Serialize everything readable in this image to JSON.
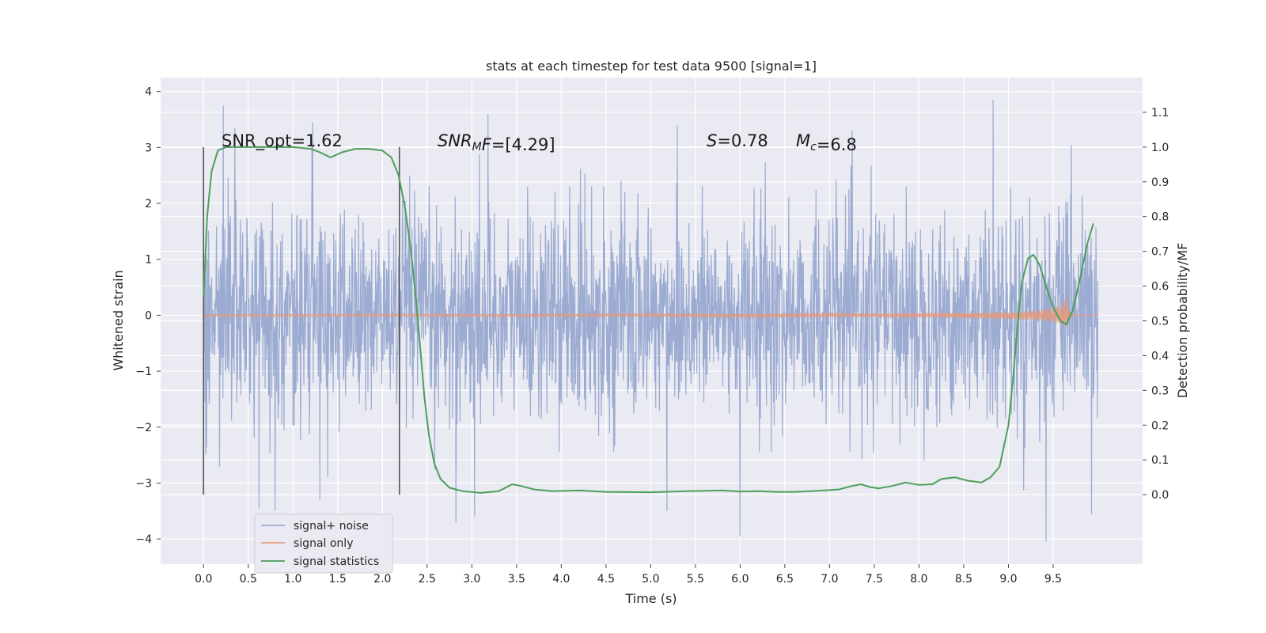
{
  "chart_data": {
    "type": "line",
    "title": "stats at each timestep for test data 9500 [signal=1]",
    "xlabel": "Time (s)",
    "ylabel": "Whitened strain",
    "y2label": "Detection probability/MF",
    "xlim": [
      -0.48,
      10.5
    ],
    "ylim": [
      -4.45,
      4.25
    ],
    "y2lim": [
      -0.2,
      1.2
    ],
    "x_ticks": [
      0.0,
      0.5,
      1.0,
      1.5,
      2.0,
      2.5,
      3.0,
      3.5,
      4.0,
      4.5,
      5.0,
      5.5,
      6.0,
      6.5,
      7.0,
      7.5,
      8.0,
      8.5,
      9.0,
      9.5
    ],
    "x_tick_labels": [
      "0.0",
      "0.5",
      "1.0",
      "1.5",
      "2.0",
      "2.5",
      "3.0",
      "3.5",
      "4.0",
      "4.5",
      "5.0",
      "5.5",
      "6.0",
      "6.5",
      "7.0",
      "7.5",
      "8.0",
      "8.5",
      "9.0",
      "9.5"
    ],
    "y_ticks": [
      4,
      3,
      2,
      1,
      0,
      -1,
      -2,
      -3,
      -4
    ],
    "y_tick_labels": [
      "4",
      "3",
      "2",
      "1",
      "0",
      "−1",
      "−2",
      "−3",
      "−4"
    ],
    "y2_ticks": [
      1.1,
      1.0,
      0.9,
      0.8,
      0.7,
      0.6,
      0.5,
      0.4,
      0.3,
      0.2,
      0.1,
      0.0
    ],
    "y2_tick_labels": [
      "1.1",
      "1.0",
      "0.9",
      "0.8",
      "0.7",
      "0.6",
      "0.5",
      "0.4",
      "0.3",
      "0.2",
      "0.1",
      "0.0"
    ],
    "grid": true,
    "legend_position": "lower-left",
    "series": [
      {
        "name": "signal+ noise",
        "color": "#8da0cb",
        "axis": "left",
        "noise_std": 1.0,
        "x_range": [
          0.0,
          10.0
        ],
        "spikes": [
          {
            "x": 0.22,
            "y": 3.75
          },
          {
            "x": 0.35,
            "y": 3.35
          },
          {
            "x": 1.22,
            "y": 3.45
          },
          {
            "x": 3.18,
            "y": 3.6
          },
          {
            "x": 5.3,
            "y": 3.4
          },
          {
            "x": 8.83,
            "y": 3.85
          },
          {
            "x": 0.62,
            "y": -3.45
          },
          {
            "x": 0.8,
            "y": -3.5
          },
          {
            "x": 1.3,
            "y": -3.3
          },
          {
            "x": 2.82,
            "y": -3.7
          },
          {
            "x": 3.03,
            "y": -3.6
          },
          {
            "x": 5.18,
            "y": -3.5
          },
          {
            "x": 6.0,
            "y": -3.95
          },
          {
            "x": 9.42,
            "y": -4.05
          },
          {
            "x": 9.93,
            "y": -3.55
          }
        ]
      },
      {
        "name": "signal only",
        "color": "#e99675",
        "axis": "left",
        "chirp": {
          "t_start": 0.0,
          "t_merger": 9.65,
          "t_end": 10.0,
          "peak_amplitude": 0.32
        }
      },
      {
        "name": "signal statistics",
        "color": "#4c9f5b",
        "axis": "right",
        "x": [
          0.0,
          0.04,
          0.09,
          0.16,
          0.25,
          0.4,
          0.6,
          0.8,
          1.0,
          1.2,
          1.3,
          1.42,
          1.55,
          1.7,
          1.85,
          2.0,
          2.1,
          2.18,
          2.25,
          2.32,
          2.38,
          2.43,
          2.47,
          2.52,
          2.58,
          2.65,
          2.75,
          2.9,
          3.1,
          3.3,
          3.45,
          3.55,
          3.7,
          3.9,
          4.2,
          4.5,
          5.0,
          5.4,
          5.8,
          6.0,
          6.2,
          6.4,
          6.6,
          6.8,
          7.1,
          7.25,
          7.35,
          7.45,
          7.55,
          7.7,
          7.85,
          8.0,
          8.15,
          8.25,
          8.4,
          8.55,
          8.7,
          8.8,
          8.9,
          9.0,
          9.05,
          9.1,
          9.15,
          9.22,
          9.28,
          9.35,
          9.42,
          9.5,
          9.58,
          9.65,
          9.72,
          9.8,
          9.88,
          9.95
        ],
        "values": [
          0.57,
          0.8,
          0.93,
          0.99,
          1.0,
          1.0,
          1.0,
          1.0,
          1.0,
          0.995,
          0.985,
          0.97,
          0.985,
          0.995,
          0.995,
          0.99,
          0.97,
          0.92,
          0.83,
          0.7,
          0.55,
          0.4,
          0.28,
          0.17,
          0.09,
          0.045,
          0.02,
          0.01,
          0.005,
          0.01,
          0.03,
          0.025,
          0.015,
          0.01,
          0.012,
          0.008,
          0.007,
          0.01,
          0.012,
          0.009,
          0.01,
          0.008,
          0.008,
          0.01,
          0.015,
          0.025,
          0.03,
          0.022,
          0.018,
          0.025,
          0.035,
          0.028,
          0.03,
          0.045,
          0.05,
          0.04,
          0.035,
          0.05,
          0.08,
          0.2,
          0.33,
          0.48,
          0.61,
          0.68,
          0.69,
          0.66,
          0.6,
          0.54,
          0.5,
          0.49,
          0.53,
          0.62,
          0.72,
          0.78
        ]
      }
    ],
    "vertical_lines": [
      0.0,
      2.19
    ],
    "annotations": [
      {
        "id": "snr-opt",
        "parts": [
          {
            "t": "SNR_opt=1.62"
          }
        ]
      },
      {
        "id": "snr-mf",
        "parts": [
          {
            "t": "SNR",
            "i": true
          },
          {
            "t": "M",
            "i": true,
            "sub": true
          },
          {
            "t": "F",
            "i": true
          },
          {
            "t": "=[4.29]"
          }
        ]
      },
      {
        "id": "s-val",
        "parts": [
          {
            "t": "S",
            "i": true
          },
          {
            "t": "=0.78"
          }
        ]
      },
      {
        "id": "mc-val",
        "parts": [
          {
            "t": "M",
            "i": true
          },
          {
            "t": "c",
            "i": true,
            "sub": true
          },
          {
            "t": "=6.8"
          }
        ]
      }
    ]
  }
}
